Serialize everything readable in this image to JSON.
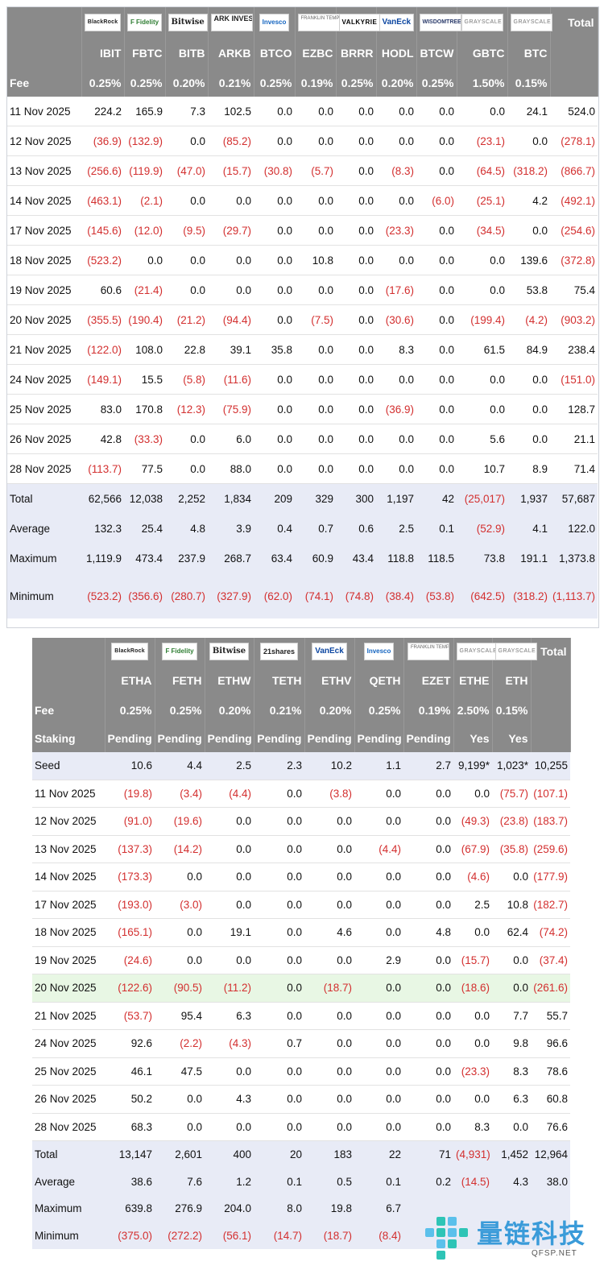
{
  "btc": {
    "logos": [
      {
        "name": "blackrock-logo",
        "text": "BlackRock",
        "cls": "l-black"
      },
      {
        "name": "fidelity-logo",
        "text": "F Fidelity",
        "cls": "l-fidelity"
      },
      {
        "name": "bitwise-logo",
        "text": "Bitwise",
        "cls": "l-bitwise"
      },
      {
        "name": "ark-logo",
        "text": "ARK INVEST",
        "cls": "l-ark"
      },
      {
        "name": "invesco-logo",
        "text": "Invesco",
        "cls": "l-invesco"
      },
      {
        "name": "franklin-logo",
        "text": "FRANKLIN TEMPLETON",
        "cls": "l-frank"
      },
      {
        "name": "valkyrie-logo",
        "text": "VALKYRIE",
        "cls": "l-valkyrie"
      },
      {
        "name": "vaneck-logo",
        "text": "VanEck",
        "cls": "l-vaneck"
      },
      {
        "name": "wisdomtree-logo",
        "text": "WISDOMTREE",
        "cls": "l-wisdom"
      },
      {
        "name": "grayscale-logo",
        "text": "GRAYSCALE",
        "cls": "l-gray"
      },
      {
        "name": "grayscale-mini-logo",
        "text": "GRAYSCALE",
        "cls": "l-gray"
      }
    ],
    "total_label": "Total",
    "tickers": [
      "IBIT",
      "FBTC",
      "BITB",
      "ARKB",
      "BTCO",
      "EZBC",
      "BRRR",
      "HODL",
      "BTCW",
      "GBTC",
      "BTC"
    ],
    "fee_label": "Fee",
    "fees": [
      "0.25%",
      "0.25%",
      "0.20%",
      "0.21%",
      "0.25%",
      "0.19%",
      "0.25%",
      "0.20%",
      "0.25%",
      "1.50%",
      "0.15%"
    ],
    "rows": [
      {
        "label": "11 Nov 2025",
        "values": [
          "224.2",
          "165.9",
          "7.3",
          "102.5",
          "0.0",
          "0.0",
          "0.0",
          "0.0",
          "0.0",
          "0.0",
          "24.1",
          "524.0"
        ]
      },
      {
        "label": "12 Nov 2025",
        "values": [
          "(36.9)",
          "(132.9)",
          "0.0",
          "(85.2)",
          "0.0",
          "0.0",
          "0.0",
          "0.0",
          "0.0",
          "(23.1)",
          "0.0",
          "(278.1)"
        ]
      },
      {
        "label": "13 Nov 2025",
        "values": [
          "(256.6)",
          "(119.9)",
          "(47.0)",
          "(15.7)",
          "(30.8)",
          "(5.7)",
          "0.0",
          "(8.3)",
          "0.0",
          "(64.5)",
          "(318.2)",
          "(866.7)"
        ]
      },
      {
        "label": "14 Nov 2025",
        "values": [
          "(463.1)",
          "(2.1)",
          "0.0",
          "0.0",
          "0.0",
          "0.0",
          "0.0",
          "0.0",
          "(6.0)",
          "(25.1)",
          "4.2",
          "(492.1)"
        ]
      },
      {
        "label": "17 Nov 2025",
        "values": [
          "(145.6)",
          "(12.0)",
          "(9.5)",
          "(29.7)",
          "0.0",
          "0.0",
          "0.0",
          "(23.3)",
          "0.0",
          "(34.5)",
          "0.0",
          "(254.6)"
        ]
      },
      {
        "label": "18 Nov 2025",
        "values": [
          "(523.2)",
          "0.0",
          "0.0",
          "0.0",
          "0.0",
          "10.8",
          "0.0",
          "0.0",
          "0.0",
          "0.0",
          "139.6",
          "(372.8)"
        ]
      },
      {
        "label": "19 Nov 2025",
        "values": [
          "60.6",
          "(21.4)",
          "0.0",
          "0.0",
          "0.0",
          "0.0",
          "0.0",
          "(17.6)",
          "0.0",
          "0.0",
          "53.8",
          "75.4"
        ]
      },
      {
        "label": "20 Nov 2025",
        "values": [
          "(355.5)",
          "(190.4)",
          "(21.2)",
          "(94.4)",
          "0.0",
          "(7.5)",
          "0.0",
          "(30.6)",
          "0.0",
          "(199.4)",
          "(4.2)",
          "(903.2)"
        ]
      },
      {
        "label": "21 Nov 2025",
        "values": [
          "(122.0)",
          "108.0",
          "22.8",
          "39.1",
          "35.8",
          "0.0",
          "0.0",
          "8.3",
          "0.0",
          "61.5",
          "84.9",
          "238.4"
        ]
      },
      {
        "label": "24 Nov 2025",
        "values": [
          "(149.1)",
          "15.5",
          "(5.8)",
          "(11.6)",
          "0.0",
          "0.0",
          "0.0",
          "0.0",
          "0.0",
          "0.0",
          "0.0",
          "(151.0)"
        ]
      },
      {
        "label": "25 Nov 2025",
        "values": [
          "83.0",
          "170.8",
          "(12.3)",
          "(75.9)",
          "0.0",
          "0.0",
          "0.0",
          "(36.9)",
          "0.0",
          "0.0",
          "0.0",
          "128.7"
        ]
      },
      {
        "label": "26 Nov 2025",
        "values": [
          "42.8",
          "(33.3)",
          "0.0",
          "6.0",
          "0.0",
          "0.0",
          "0.0",
          "0.0",
          "0.0",
          "5.6",
          "0.0",
          "21.1"
        ]
      },
      {
        "label": "28 Nov 2025",
        "values": [
          "(113.7)",
          "77.5",
          "0.0",
          "88.0",
          "0.0",
          "0.0",
          "0.0",
          "0.0",
          "0.0",
          "10.7",
          "8.9",
          "71.4"
        ]
      }
    ],
    "summary": [
      {
        "label": "Total",
        "values": [
          "62,566",
          "12,038",
          "2,252",
          "1,834",
          "209",
          "329",
          "300",
          "1,197",
          "42",
          "(25,017)",
          "1,937",
          "57,687"
        ]
      },
      {
        "label": "Average",
        "values": [
          "132.3",
          "25.4",
          "4.8",
          "3.9",
          "0.4",
          "0.7",
          "0.6",
          "2.5",
          "0.1",
          "(52.9)",
          "4.1",
          "122.0"
        ]
      },
      {
        "label": "Maximum",
        "values": [
          "1,119.9",
          "473.4",
          "237.9",
          "268.7",
          "63.4",
          "60.9",
          "43.4",
          "118.8",
          "118.5",
          "73.8",
          "191.1",
          "1,373.8"
        ]
      },
      {
        "label": "Minimum",
        "values": [
          "(523.2)",
          "(356.6)",
          "(280.7)",
          "(327.9)",
          "(62.0)",
          "(74.1)",
          "(74.8)",
          "(38.4)",
          "(53.8)",
          "(642.5)",
          "(318.2)",
          "(1,113.7)"
        ]
      }
    ]
  },
  "eth": {
    "logos": [
      {
        "name": "blackrock-logo",
        "text": "BlackRock",
        "cls": "l-black"
      },
      {
        "name": "fidelity-logo",
        "text": "F Fidelity",
        "cls": "l-fidelity"
      },
      {
        "name": "bitwise-logo",
        "text": "Bitwise",
        "cls": "l-bitwise"
      },
      {
        "name": "21shares-logo",
        "text": "21shares",
        "cls": "l-21"
      },
      {
        "name": "vaneck-logo",
        "text": "VanEck",
        "cls": "l-vaneck"
      },
      {
        "name": "invesco-logo",
        "text": "Invesco",
        "cls": "l-invesco"
      },
      {
        "name": "franklin-logo",
        "text": "FRANKLIN TEMPLETON",
        "cls": "l-frank"
      },
      {
        "name": "grayscale-logo",
        "text": "GRAYSCALE",
        "cls": "l-gray"
      },
      {
        "name": "grayscale-mini-logo",
        "text": "GRAYSCALE",
        "cls": "l-gray"
      }
    ],
    "total_label": "Total",
    "tickers": [
      "ETHA",
      "FETH",
      "ETHW",
      "TETH",
      "ETHV",
      "QETH",
      "EZET",
      "ETHE",
      "ETH"
    ],
    "fee_label": "Fee",
    "fees": [
      "0.25%",
      "0.25%",
      "0.20%",
      "0.21%",
      "0.20%",
      "0.25%",
      "0.19%",
      "2.50%",
      "0.15%"
    ],
    "staking_label": "Staking",
    "staking": [
      "Pending",
      "Pending",
      "Pending",
      "Pending",
      "Pending",
      "Pending",
      "Pending",
      "Yes",
      "Yes"
    ],
    "rows": [
      {
        "label": "Seed",
        "values": [
          "10.6",
          "4.4",
          "2.5",
          "2.3",
          "10.2",
          "1.1",
          "2.7",
          "9,199*",
          "1,023*",
          "10,255"
        ]
      },
      {
        "label": "11 Nov 2025",
        "values": [
          "(19.8)",
          "(3.4)",
          "(4.4)",
          "0.0",
          "(3.8)",
          "0.0",
          "0.0",
          "0.0",
          "(75.7)",
          "(107.1)"
        ]
      },
      {
        "label": "12 Nov 2025",
        "values": [
          "(91.0)",
          "(19.6)",
          "0.0",
          "0.0",
          "0.0",
          "0.0",
          "0.0",
          "(49.3)",
          "(23.8)",
          "(183.7)"
        ]
      },
      {
        "label": "13 Nov 2025",
        "values": [
          "(137.3)",
          "(14.2)",
          "0.0",
          "0.0",
          "0.0",
          "(4.4)",
          "0.0",
          "(67.9)",
          "(35.8)",
          "(259.6)"
        ]
      },
      {
        "label": "14 Nov 2025",
        "values": [
          "(173.3)",
          "0.0",
          "0.0",
          "0.0",
          "0.0",
          "0.0",
          "0.0",
          "(4.6)",
          "0.0",
          "(177.9)"
        ]
      },
      {
        "label": "17 Nov 2025",
        "values": [
          "(193.0)",
          "(3.0)",
          "0.0",
          "0.0",
          "0.0",
          "0.0",
          "0.0",
          "2.5",
          "10.8",
          "(182.7)"
        ]
      },
      {
        "label": "18 Nov 2025",
        "values": [
          "(165.1)",
          "0.0",
          "19.1",
          "0.0",
          "4.6",
          "0.0",
          "4.8",
          "0.0",
          "62.4",
          "(74.2)"
        ]
      },
      {
        "label": "19 Nov 2025",
        "values": [
          "(24.6)",
          "0.0",
          "0.0",
          "0.0",
          "0.0",
          "2.9",
          "0.0",
          "(15.7)",
          "0.0",
          "(37.4)"
        ]
      },
      {
        "label": "20 Nov 2025",
        "values": [
          "(122.6)",
          "(90.5)",
          "(11.2)",
          "0.0",
          "(18.7)",
          "0.0",
          "0.0",
          "(18.6)",
          "0.0",
          "(261.6)"
        ]
      },
      {
        "label": "21 Nov 2025",
        "values": [
          "(53.7)",
          "95.4",
          "6.3",
          "0.0",
          "0.0",
          "0.0",
          "0.0",
          "0.0",
          "7.7",
          "55.7"
        ]
      },
      {
        "label": "24 Nov 2025",
        "values": [
          "92.6",
          "(2.2)",
          "(4.3)",
          "0.7",
          "0.0",
          "0.0",
          "0.0",
          "0.0",
          "9.8",
          "96.6"
        ]
      },
      {
        "label": "25 Nov 2025",
        "values": [
          "46.1",
          "47.5",
          "0.0",
          "0.0",
          "0.0",
          "0.0",
          "0.0",
          "(23.3)",
          "8.3",
          "78.6"
        ]
      },
      {
        "label": "26 Nov 2025",
        "values": [
          "50.2",
          "0.0",
          "4.3",
          "0.0",
          "0.0",
          "0.0",
          "0.0",
          "0.0",
          "6.3",
          "60.8"
        ]
      },
      {
        "label": "28 Nov 2025",
        "values": [
          "68.3",
          "0.0",
          "0.0",
          "0.0",
          "0.0",
          "0.0",
          "0.0",
          "8.3",
          "0.0",
          "76.6"
        ]
      }
    ],
    "summary": [
      {
        "label": "Total",
        "values": [
          "13,147",
          "2,601",
          "400",
          "20",
          "183",
          "22",
          "71",
          "(4,931)",
          "1,452",
          "12,964"
        ]
      },
      {
        "label": "Average",
        "values": [
          "38.6",
          "7.6",
          "1.2",
          "0.1",
          "0.5",
          "0.1",
          "0.2",
          "(14.5)",
          "4.3",
          "38.0"
        ]
      },
      {
        "label": "Maximum",
        "values": [
          "639.8",
          "276.9",
          "204.0",
          "8.0",
          "19.8",
          "6.7",
          "",
          "",
          "",
          ""
        ]
      },
      {
        "label": "Minimum",
        "values": [
          "(375.0)",
          "(272.2)",
          "(56.1)",
          "(14.7)",
          "(18.7)",
          "(8.4)",
          "",
          "",
          "",
          ""
        ]
      }
    ]
  },
  "watermark": {
    "main": "量链科技",
    "sub": "QFSP.NET"
  }
}
